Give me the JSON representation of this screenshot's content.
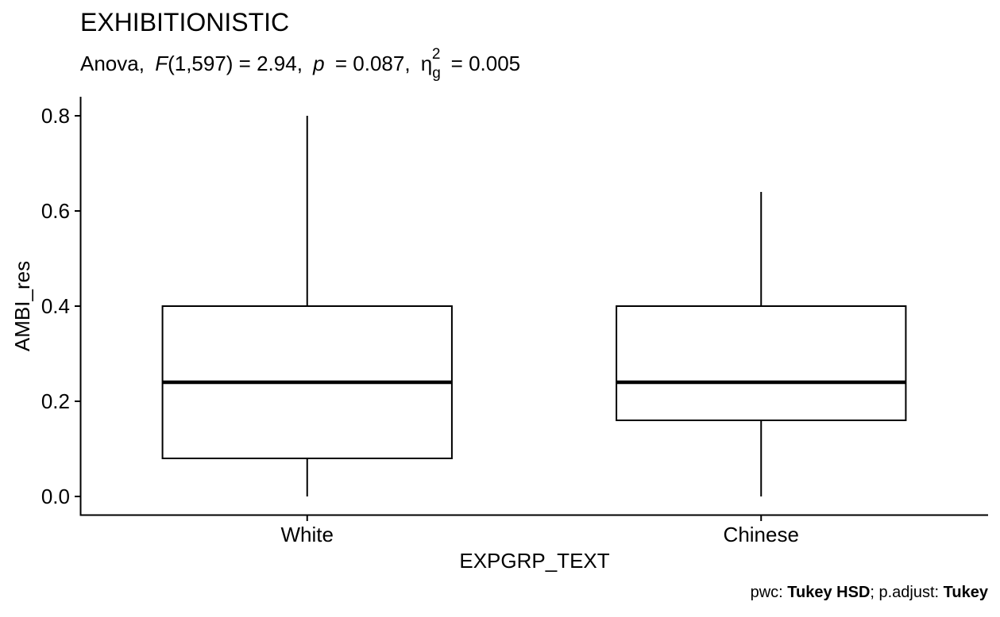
{
  "chart_data": {
    "type": "box",
    "title": "EXHIBITIONISTIC",
    "subtitle": {
      "test": "Anova,",
      "f_symbol": "F",
      "f_args": "(1,597) = 2.94,",
      "p_symbol": "p",
      "p_value": "= 0.087,",
      "eta_symbol": "η",
      "eta_sub": "g",
      "eta_sup": "2",
      "eta_value": "= 0.005"
    },
    "xlabel": "EXPGRP_TEXT",
    "ylabel": "AMBI_res",
    "categories": [
      "White",
      "Chinese"
    ],
    "yticks": [
      "0.0",
      "0.2",
      "0.4",
      "0.6",
      "0.8"
    ],
    "ytick_values": [
      0.0,
      0.2,
      0.4,
      0.6,
      0.8
    ],
    "ylim": [
      -0.04,
      0.84
    ],
    "boxes": [
      {
        "category": "White",
        "min": 0.0,
        "q1": 0.08,
        "median": 0.24,
        "q3": 0.4,
        "max": 0.8
      },
      {
        "category": "Chinese",
        "min": 0.0,
        "q1": 0.16,
        "median": 0.24,
        "q3": 0.4,
        "max": 0.64
      }
    ],
    "caption": {
      "pwc_label": "pwc: ",
      "pwc_value": "Tukey HSD",
      "adj_label": "; p.adjust: ",
      "adj_value": "Tukey"
    },
    "grid": false,
    "legend": "none",
    "colors": {
      "box_fill": "#ffffff",
      "stroke": "#000000"
    }
  }
}
